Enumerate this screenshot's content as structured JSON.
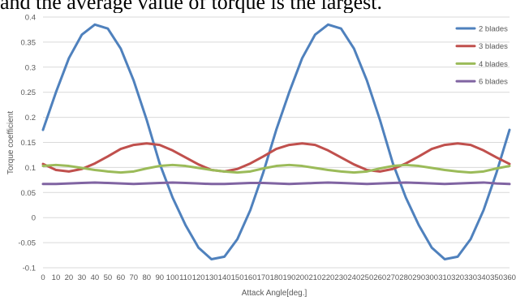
{
  "caption": "and the average value of torque is the largest.",
  "colors": {
    "grid": "#d9d9d9",
    "text": "#595959"
  },
  "chart_data": {
    "type": "line",
    "title": "",
    "xlabel": "Attack Angle[deg.]",
    "ylabel": "Torque coefficient",
    "ylim": [
      -0.1,
      0.4
    ],
    "y_ticks": [
      "0.4",
      "0.35",
      "0.3",
      "0.25",
      "0.2",
      "0.15",
      "0.1",
      "0.05",
      "0",
      "-0.05",
      "-0.1"
    ],
    "x": [
      0,
      10,
      20,
      30,
      40,
      50,
      60,
      70,
      80,
      90,
      100,
      110,
      120,
      130,
      140,
      150,
      160,
      170,
      180,
      190,
      200,
      210,
      220,
      230,
      240,
      250,
      260,
      270,
      280,
      290,
      300,
      310,
      320,
      330,
      340,
      350,
      360
    ],
    "grid": "horizontal",
    "legend_position": "right",
    "series": [
      {
        "name": "2 blades",
        "color": "#4f81bd",
        "values": [
          0.175,
          0.25,
          0.318,
          0.365,
          0.385,
          0.377,
          0.337,
          0.273,
          0.195,
          0.108,
          0.04,
          -0.015,
          -0.06,
          -0.083,
          -0.078,
          -0.043,
          0.015,
          0.09,
          0.175,
          0.25,
          0.318,
          0.365,
          0.385,
          0.377,
          0.337,
          0.273,
          0.195,
          0.108,
          0.04,
          -0.015,
          -0.06,
          -0.083,
          -0.078,
          -0.043,
          0.015,
          0.09,
          0.175
        ]
      },
      {
        "name": "3 blades",
        "color": "#c0504d",
        "values": [
          0.107,
          0.095,
          0.092,
          0.097,
          0.108,
          0.122,
          0.137,
          0.145,
          0.148,
          0.145,
          0.134,
          0.12,
          0.106,
          0.095,
          0.092,
          0.097,
          0.108,
          0.122,
          0.137,
          0.145,
          0.148,
          0.145,
          0.134,
          0.12,
          0.106,
          0.095,
          0.092,
          0.097,
          0.108,
          0.122,
          0.137,
          0.145,
          0.148,
          0.145,
          0.134,
          0.12,
          0.107
        ]
      },
      {
        "name": "4 blades",
        "color": "#9bbb59",
        "values": [
          0.103,
          0.105,
          0.103,
          0.099,
          0.095,
          0.092,
          0.09,
          0.092,
          0.098,
          0.103,
          0.105,
          0.103,
          0.099,
          0.095,
          0.092,
          0.09,
          0.092,
          0.098,
          0.103,
          0.105,
          0.103,
          0.099,
          0.095,
          0.092,
          0.09,
          0.092,
          0.098,
          0.103,
          0.105,
          0.103,
          0.099,
          0.095,
          0.092,
          0.09,
          0.092,
          0.098,
          0.103
        ]
      },
      {
        "name": "6 blades",
        "color": "#8064a2",
        "values": [
          0.067,
          0.067,
          0.068,
          0.069,
          0.07,
          0.069,
          0.068,
          0.067,
          0.068,
          0.069,
          0.07,
          0.069,
          0.068,
          0.067,
          0.067,
          0.068,
          0.069,
          0.069,
          0.068,
          0.067,
          0.068,
          0.069,
          0.07,
          0.069,
          0.068,
          0.067,
          0.068,
          0.069,
          0.07,
          0.069,
          0.068,
          0.067,
          0.068,
          0.069,
          0.07,
          0.068,
          0.067
        ]
      }
    ]
  }
}
